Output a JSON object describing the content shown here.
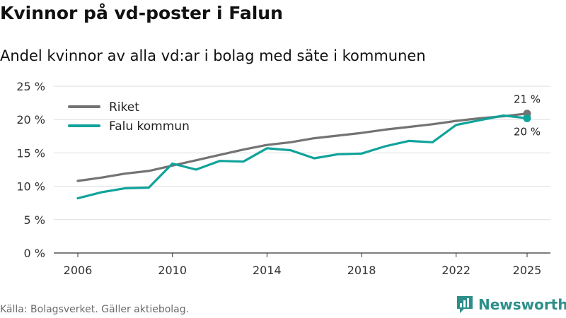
{
  "title": "Kvinnor på vd-poster i Falun",
  "subtitle": "Andel kvinnor av alla vd:ar i bolag med säte i kommunen",
  "source": "Källa: Bolagsverket. Gäller aktiebolag.",
  "brand": "Newsworthy",
  "colors": {
    "riket": "#737373",
    "falu": "#0fa39a",
    "grid": "#dddddd",
    "axis": "#333333",
    "brand": "#2c8f8a"
  },
  "chart_data": {
    "type": "line",
    "title": "Kvinnor på vd-poster i Falun",
    "subtitle": "Andel kvinnor av alla vd:ar i bolag med säte i kommunen",
    "xlabel": "",
    "ylabel": "",
    "x": [
      2006,
      2007,
      2008,
      2009,
      2010,
      2011,
      2012,
      2013,
      2014,
      2015,
      2016,
      2017,
      2018,
      2019,
      2020,
      2021,
      2022,
      2023,
      2024,
      2025
    ],
    "xlim": [
      2006,
      2025
    ],
    "ylim": [
      0,
      25
    ],
    "x_ticks": [
      "2006",
      "2010",
      "2014",
      "2018",
      "2022",
      "2025"
    ],
    "y_ticks": [
      "0 %",
      "5 %",
      "10 %",
      "15 %",
      "20 %",
      "25 %"
    ],
    "grid": true,
    "legend_position": "top-left",
    "series": [
      {
        "name": "Riket",
        "color": "#737373",
        "values": [
          10.8,
          11.3,
          11.9,
          12.3,
          13.1,
          13.9,
          14.7,
          15.5,
          16.2,
          16.6,
          17.2,
          17.6,
          18.0,
          18.5,
          18.9,
          19.3,
          19.8,
          20.2,
          20.5,
          20.9
        ],
        "end_label": "21 %"
      },
      {
        "name": "Falu kommun",
        "color": "#0fa39a",
        "values": [
          8.2,
          9.1,
          9.7,
          9.8,
          13.4,
          12.5,
          13.8,
          13.7,
          15.7,
          15.4,
          14.2,
          14.8,
          14.9,
          16.0,
          16.8,
          16.6,
          19.2,
          19.9,
          20.6,
          20.2
        ],
        "end_label": "20 %"
      }
    ]
  }
}
